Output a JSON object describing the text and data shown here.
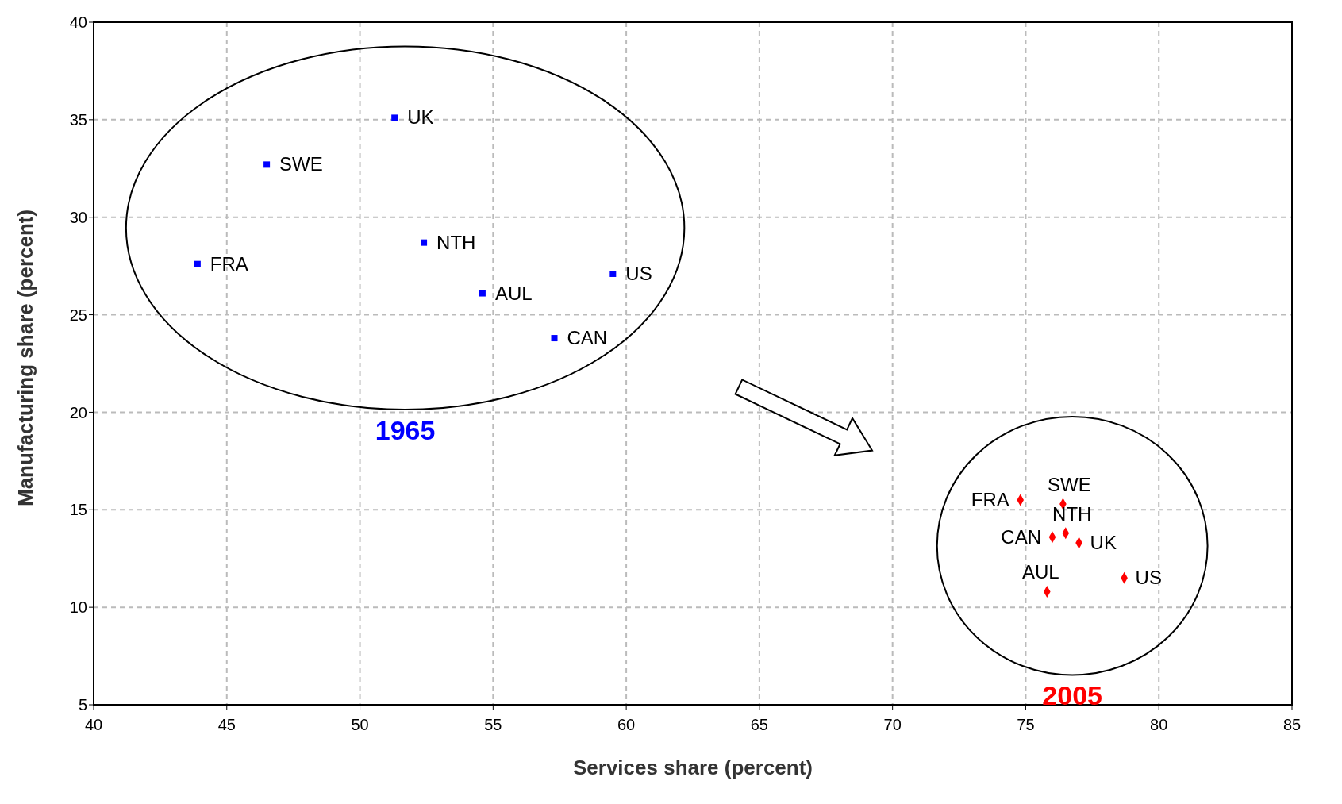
{
  "chart_data": {
    "type": "scatter",
    "xlabel": "Services share (percent)",
    "ylabel": "Manufacturing share (percent)",
    "xlim": [
      40,
      85
    ],
    "xticks": [
      40,
      45,
      50,
      55,
      60,
      65,
      70,
      75,
      80,
      85
    ],
    "ylim": [
      5,
      40
    ],
    "yticks": [
      5,
      10,
      15,
      20,
      25,
      30,
      35,
      40
    ],
    "grid": true,
    "series": [
      {
        "name": "1965",
        "color": "#0000ff",
        "marker": "square",
        "x": [
          51.3,
          46.5,
          43.9,
          52.4,
          54.6,
          59.5,
          57.3
        ],
        "values": [
          35.1,
          32.7,
          27.6,
          28.7,
          26.1,
          27.1,
          23.8
        ],
        "value_labels": [
          "UK",
          "SWE",
          "FRA",
          "NTH",
          "AUL",
          "US",
          "CAN"
        ]
      },
      {
        "name": "2005",
        "color": "#ff0000",
        "marker": "diamond",
        "x": [
          74.8,
          76.4,
          76.0,
          76.5,
          77.0,
          78.7,
          75.8
        ],
        "values": [
          15.5,
          15.3,
          13.6,
          13.8,
          13.3,
          11.5,
          10.8
        ],
        "value_labels": [
          "FRA",
          "SWE",
          "CAN",
          "NTH",
          "UK",
          "US",
          "AUL"
        ]
      }
    ]
  }
}
